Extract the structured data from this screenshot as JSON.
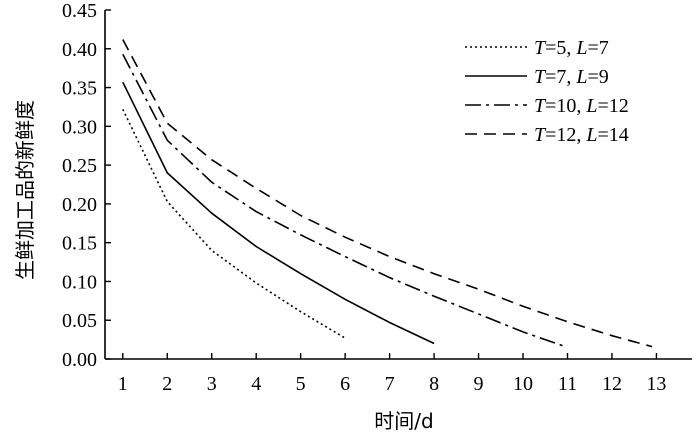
{
  "chart_data": {
    "type": "line",
    "title": "",
    "xlabel": "时间/d",
    "ylabel": "生鲜加工品的新鲜度",
    "xlim": [
      0.6,
      13.8
    ],
    "ylim": [
      0,
      0.45
    ],
    "x_ticks": [
      "1",
      "2",
      "3",
      "4",
      "5",
      "6",
      "7",
      "8",
      "9",
      "10",
      "11",
      "12",
      "13"
    ],
    "y_ticks": [
      "0.00",
      "0.05",
      "0.10",
      "0.15",
      "0.20",
      "0.25",
      "0.30",
      "0.35",
      "0.40",
      "0.45"
    ],
    "grid": false,
    "legend_position": "top-right",
    "series": [
      {
        "name": "T=5, L=7",
        "legend": {
          "T": "5",
          "L": "7"
        },
        "style": "dotted",
        "x": [
          1,
          2,
          3,
          4,
          5,
          6
        ],
        "y": [
          0.322,
          0.203,
          0.14,
          0.098,
          0.061,
          0.027
        ]
      },
      {
        "name": "T=7, L=9",
        "legend": {
          "T": "7",
          "L": "9"
        },
        "style": "solid",
        "x": [
          1,
          2,
          3,
          4,
          5,
          6,
          7,
          8
        ],
        "y": [
          0.357,
          0.24,
          0.188,
          0.145,
          0.11,
          0.077,
          0.047,
          0.02
        ]
      },
      {
        "name": "T=10, L=12",
        "legend": {
          "T": "10",
          "L": "12"
        },
        "style": "dashdot",
        "x": [
          1,
          2,
          3,
          4,
          5,
          6,
          7,
          8,
          9,
          10,
          10.9
        ],
        "y": [
          0.393,
          0.282,
          0.228,
          0.19,
          0.16,
          0.132,
          0.105,
          0.081,
          0.058,
          0.035,
          0.017
        ]
      },
      {
        "name": "T=12, L=14",
        "legend": {
          "T": "12",
          "L": "14"
        },
        "style": "dashed",
        "x": [
          1,
          2,
          3,
          4,
          5,
          6,
          7,
          8,
          9,
          10,
          11,
          12,
          12.9
        ],
        "y": [
          0.412,
          0.304,
          0.257,
          0.22,
          0.185,
          0.157,
          0.132,
          0.11,
          0.09,
          0.068,
          0.048,
          0.03,
          0.016
        ]
      }
    ]
  }
}
